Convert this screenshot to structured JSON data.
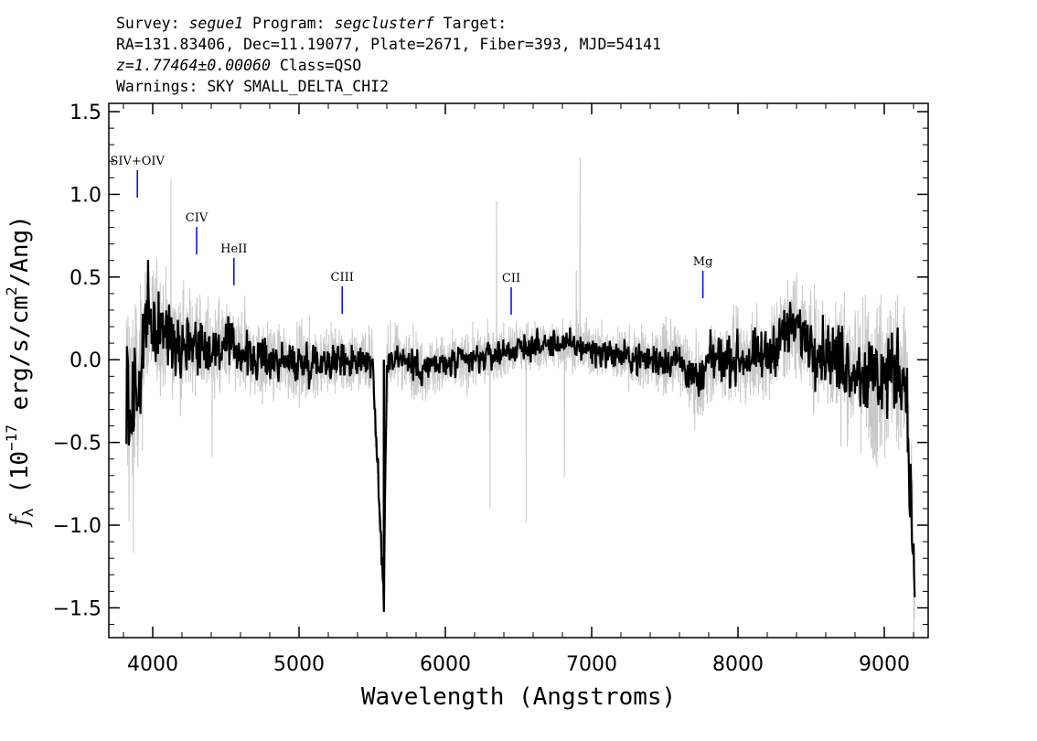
{
  "header": {
    "survey_label": "Survey:",
    "survey": "segue1",
    "program_label": "Program:",
    "program": "segclusterf",
    "target_label": "Target:",
    "line2": "RA=131.83406, Dec=11.19077, Plate=2671, Fiber=393, MJD=54141",
    "redshift": "z=1.77464±0.00060",
    "class_text": "Class=QSO",
    "warnings": "Warnings: SKY SMALL_DELTA_CHI2"
  },
  "chart_data": {
    "type": "line",
    "xlabel": "Wavelength (Angstroms)",
    "ylabel": "f_λ (10^-17 erg/s/cm²/Ang)",
    "xlim": [
      3700,
      9300
    ],
    "ylim": [
      -1.68,
      1.55
    ],
    "x_ticks": [
      4000,
      5000,
      6000,
      7000,
      8000,
      9000
    ],
    "x_tick_labels": [
      "4000",
      "5000",
      "6000",
      "7000",
      "8000",
      "9000"
    ],
    "y_ticks": [
      -1.5,
      -1.0,
      -0.5,
      0.0,
      0.5,
      1.0,
      1.5
    ],
    "y_tick_labels": [
      "−1.5",
      "−1.0",
      "−0.5",
      "0.0",
      "0.5",
      "1.0",
      "1.5"
    ],
    "grid": false,
    "series": [
      {
        "color": "#c8c8c8",
        "role": "error",
        "x": [
          3830,
          3850,
          3870,
          3900,
          3950,
          4000,
          4100,
          4200,
          4300,
          4400,
          4500,
          4600,
          4800,
          5000,
          5200,
          5400,
          5600,
          5800,
          6000,
          6200,
          6400,
          6600,
          6800,
          7000,
          7200,
          7400,
          7600,
          7700,
          7800,
          8000,
          8200,
          8400,
          8600,
          8800,
          8900,
          9000,
          9100,
          9150,
          9200
        ],
        "values": [
          0.95,
          0.9,
          0.8,
          0.6,
          0.5,
          0.42,
          0.36,
          0.34,
          0.33,
          0.3,
          0.28,
          0.27,
          0.25,
          0.24,
          0.23,
          0.22,
          0.21,
          0.2,
          0.19,
          0.18,
          0.17,
          0.16,
          0.16,
          0.17,
          0.18,
          0.2,
          0.22,
          0.24,
          0.25,
          0.27,
          0.3,
          0.34,
          0.38,
          0.45,
          0.52,
          0.55,
          0.5,
          0.48,
          0.6
        ]
      },
      {
        "color": "#000000",
        "role": "flux",
        "x": [
          3820,
          3850,
          3880,
          3900,
          3950,
          4000,
          4100,
          4200,
          4300,
          4400,
          4500,
          4600,
          4700,
          4800,
          5000,
          5200,
          5400,
          5500,
          5580,
          5600,
          5700,
          5800,
          6000,
          6200,
          6400,
          6600,
          6800,
          7000,
          7200,
          7400,
          7600,
          7700,
          7750,
          7800,
          8000,
          8200,
          8300,
          8400,
          8500,
          8600,
          8700,
          8800,
          8900,
          9000,
          9100,
          9150,
          9200
        ],
        "values": [
          -0.2,
          -0.35,
          -0.1,
          -0.3,
          0.25,
          0.2,
          0.15,
          0.1,
          0.12,
          0.05,
          0.08,
          0.05,
          0.0,
          0.0,
          -0.02,
          0.0,
          0.0,
          0.0,
          -1.45,
          0.0,
          0.02,
          -0.05,
          -0.03,
          0.0,
          0.05,
          0.08,
          0.1,
          0.06,
          0.02,
          0.0,
          0.0,
          -0.12,
          -0.15,
          0.0,
          0.0,
          0.02,
          0.15,
          0.2,
          0.1,
          0.05,
          0.0,
          -0.05,
          -0.1,
          -0.1,
          -0.05,
          -0.15,
          -1.3
        ]
      }
    ],
    "line_labels": [
      {
        "label": "SIV+OIV",
        "x": 3895,
        "color": "#0000ff"
      },
      {
        "label": "CIV",
        "x": 4300,
        "color": "#0000ff"
      },
      {
        "label": "HeII",
        "x": 4555,
        "color": "#0000ff"
      },
      {
        "label": "CIII",
        "x": 5295,
        "color": "#0000ff"
      },
      {
        "label": "CII",
        "x": 6450,
        "color": "#0000ff"
      },
      {
        "label": "Mg",
        "x": 7760,
        "color": "#0000ff"
      }
    ]
  }
}
